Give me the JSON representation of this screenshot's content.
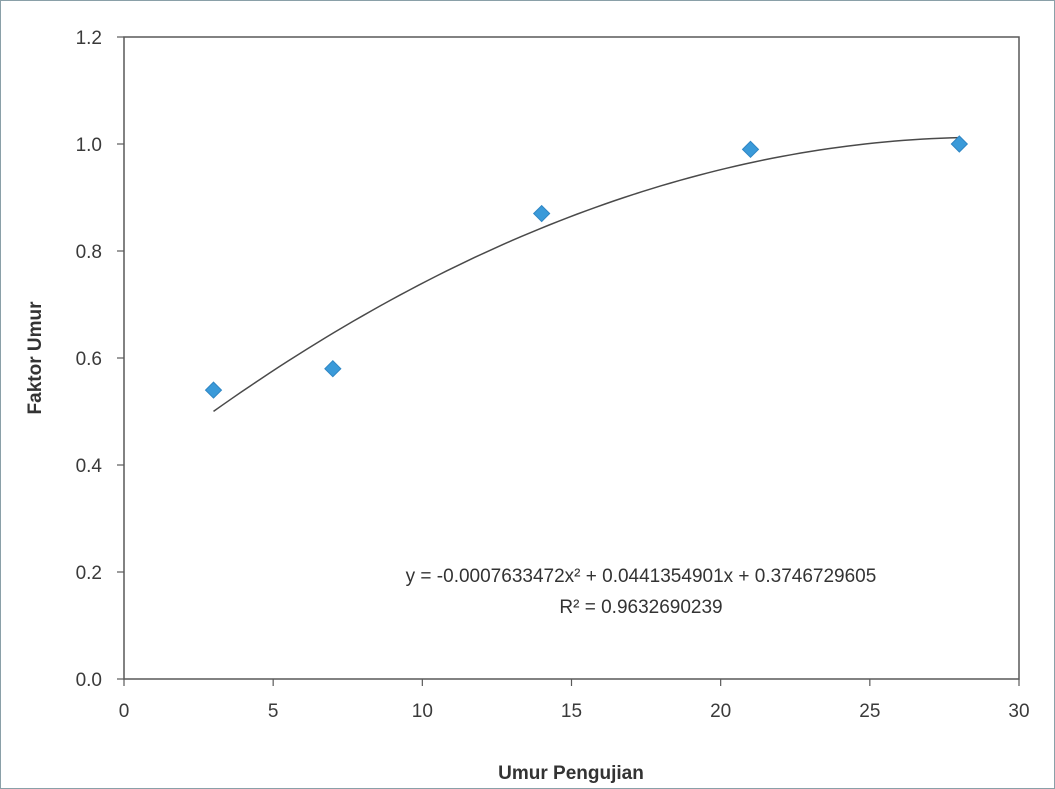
{
  "chart_data": {
    "type": "scatter",
    "title": "",
    "xlabel": "Umur Pengujian",
    "ylabel": "Faktor Umur",
    "xlim": [
      0,
      30
    ],
    "ylim": [
      0.0,
      1.2
    ],
    "x_ticks": [
      "0",
      "5",
      "10",
      "15",
      "20",
      "25",
      "30"
    ],
    "y_ticks": [
      "0.0",
      "0.2",
      "0.4",
      "0.6",
      "0.8",
      "1.0",
      "1.2"
    ],
    "grid": false,
    "legend": "none",
    "series": [
      {
        "x": [
          3,
          7,
          14,
          21,
          28
        ],
        "y": [
          0.54,
          0.58,
          0.87,
          0.99,
          1.0
        ],
        "marker": "diamond",
        "color": "#3a9ad9"
      }
    ],
    "trendline": {
      "type": "polynomial",
      "order": 2,
      "coefficients": [
        -0.0007633472,
        0.0441354901,
        0.3746729605
      ],
      "x_range": [
        3,
        28
      ],
      "color": "#4a4a4a",
      "equation_label": "y = -0.0007633472x² + 0.0441354901x + 0.3746729605",
      "r2_label": "R² = 0.9632690239"
    }
  }
}
